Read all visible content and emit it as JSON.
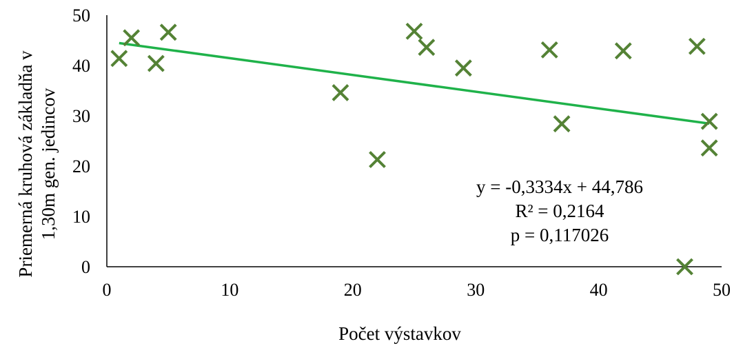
{
  "chart_data": {
    "type": "scatter",
    "title": "",
    "xlabel": "Počet výstavkov",
    "ylabel": "Priemerná kruhová základňa v 1,30m gen. jedincov",
    "ylabel_lines": [
      "Priemerná kruhová základňa v",
      "1,30m gen. jedincov"
    ],
    "xlim": [
      0,
      50
    ],
    "ylim": [
      0,
      50
    ],
    "x_ticks": [
      0,
      10,
      20,
      30,
      40,
      50
    ],
    "y_ticks": [
      0,
      10,
      20,
      30,
      40,
      50
    ],
    "x_tick_labels": [
      "0",
      "10",
      "20",
      "30",
      "40",
      "50"
    ],
    "y_tick_labels": [
      "0",
      "10",
      "20",
      "30",
      "40",
      "50"
    ],
    "grid": false,
    "series": [
      {
        "marker": "x",
        "color": "#548235",
        "points": [
          {
            "x": 1,
            "y": 41.4
          },
          {
            "x": 2,
            "y": 45.5
          },
          {
            "x": 4,
            "y": 40.4
          },
          {
            "x": 5,
            "y": 46.6
          },
          {
            "x": 19,
            "y": 34.6
          },
          {
            "x": 22,
            "y": 21.3
          },
          {
            "x": 25,
            "y": 46.8
          },
          {
            "x": 26,
            "y": 43.6
          },
          {
            "x": 29,
            "y": 39.5
          },
          {
            "x": 36,
            "y": 43.1
          },
          {
            "x": 37,
            "y": 28.4
          },
          {
            "x": 42,
            "y": 42.9
          },
          {
            "x": 47,
            "y": 0
          },
          {
            "x": 48,
            "y": 43.8
          },
          {
            "x": 49,
            "y": 28.9
          },
          {
            "x": 49,
            "y": 23.6
          }
        ]
      }
    ],
    "trendline": {
      "color": "#1fb24a",
      "slope": -0.3334,
      "intercept": 44.786,
      "x_range": [
        1,
        49
      ]
    },
    "annotations": [
      "y = -0,3334x + 44,786",
      "R² = 0,2164",
      "p = 0,117026"
    ]
  }
}
